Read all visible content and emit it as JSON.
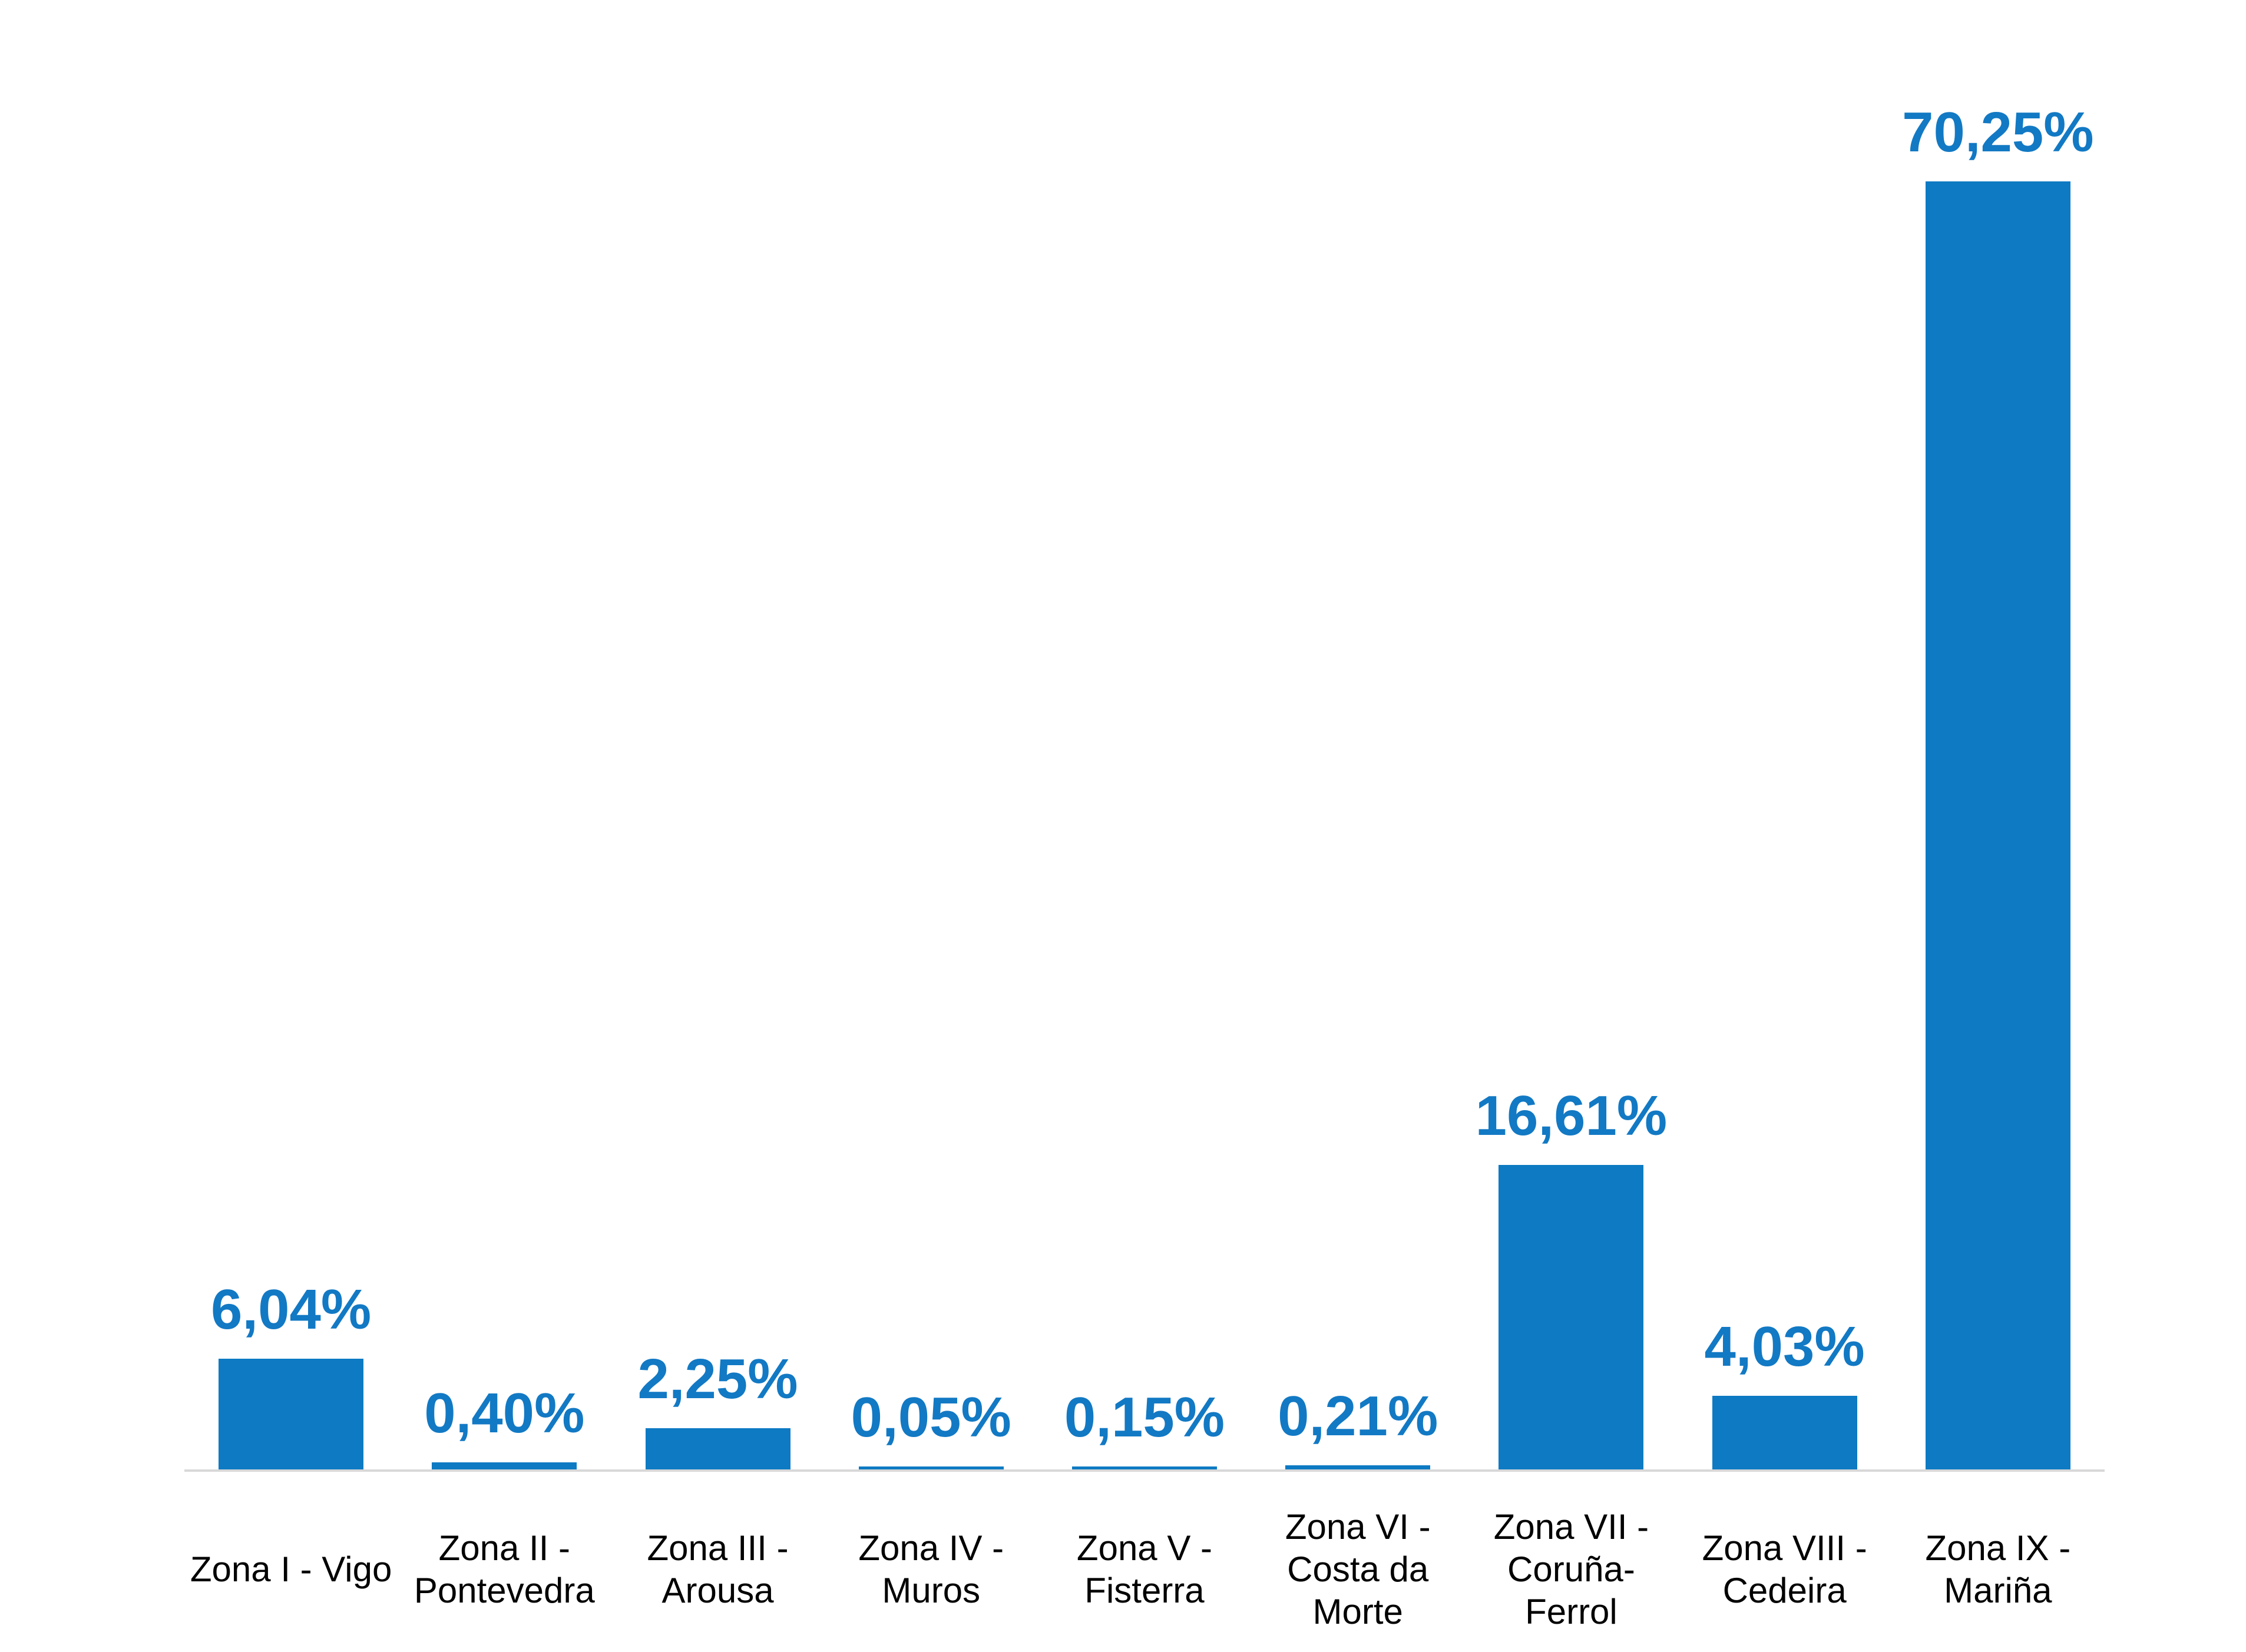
{
  "chart_data": {
    "type": "bar",
    "title": "",
    "xlabel": "",
    "ylabel": "",
    "categories": [
      "Zona I - Vigo",
      "Zona II - Pontevedra",
      "Zona III - Arousa",
      "Zona IV - Muros",
      "Zona V - Fisterra",
      "Zona VI - Costa da Morte",
      "Zona VII - Coruña-Ferrol",
      "Zona VIII - Cedeira",
      "Zona IX - Mariña"
    ],
    "label_lines": [
      [
        "Zona I - Vigo"
      ],
      [
        "Zona II -",
        "Pontevedra"
      ],
      [
        "Zona III -",
        "Arousa"
      ],
      [
        "Zona IV -",
        "Muros"
      ],
      [
        "Zona V -",
        "Fisterra"
      ],
      [
        "Zona VI -",
        "Costa da",
        "Morte"
      ],
      [
        "Zona VII -",
        "Coruña-",
        "Ferrol"
      ],
      [
        "Zona VIII -",
        "Cedeira"
      ],
      [
        "Zona IX -",
        "Mariña"
      ]
    ],
    "values": [
      6.04,
      0.4,
      2.25,
      0.05,
      0.15,
      0.21,
      16.61,
      4.03,
      70.25
    ],
    "value_labels": [
      "6,04%",
      "0,40%",
      "2,25%",
      "0,05%",
      "0,15%",
      "0,21%",
      "16,61%",
      "4,03%",
      "70,25%"
    ],
    "ylim": [
      0,
      70.25
    ],
    "grid": false,
    "legend": false,
    "data_labels_position": "above-bars",
    "colors": {
      "bar": "#0d7ac3",
      "value_label": "#1279c4",
      "category_label": "#000000",
      "axis_line": "#d8d8d8",
      "background": "#ffffff"
    }
  }
}
